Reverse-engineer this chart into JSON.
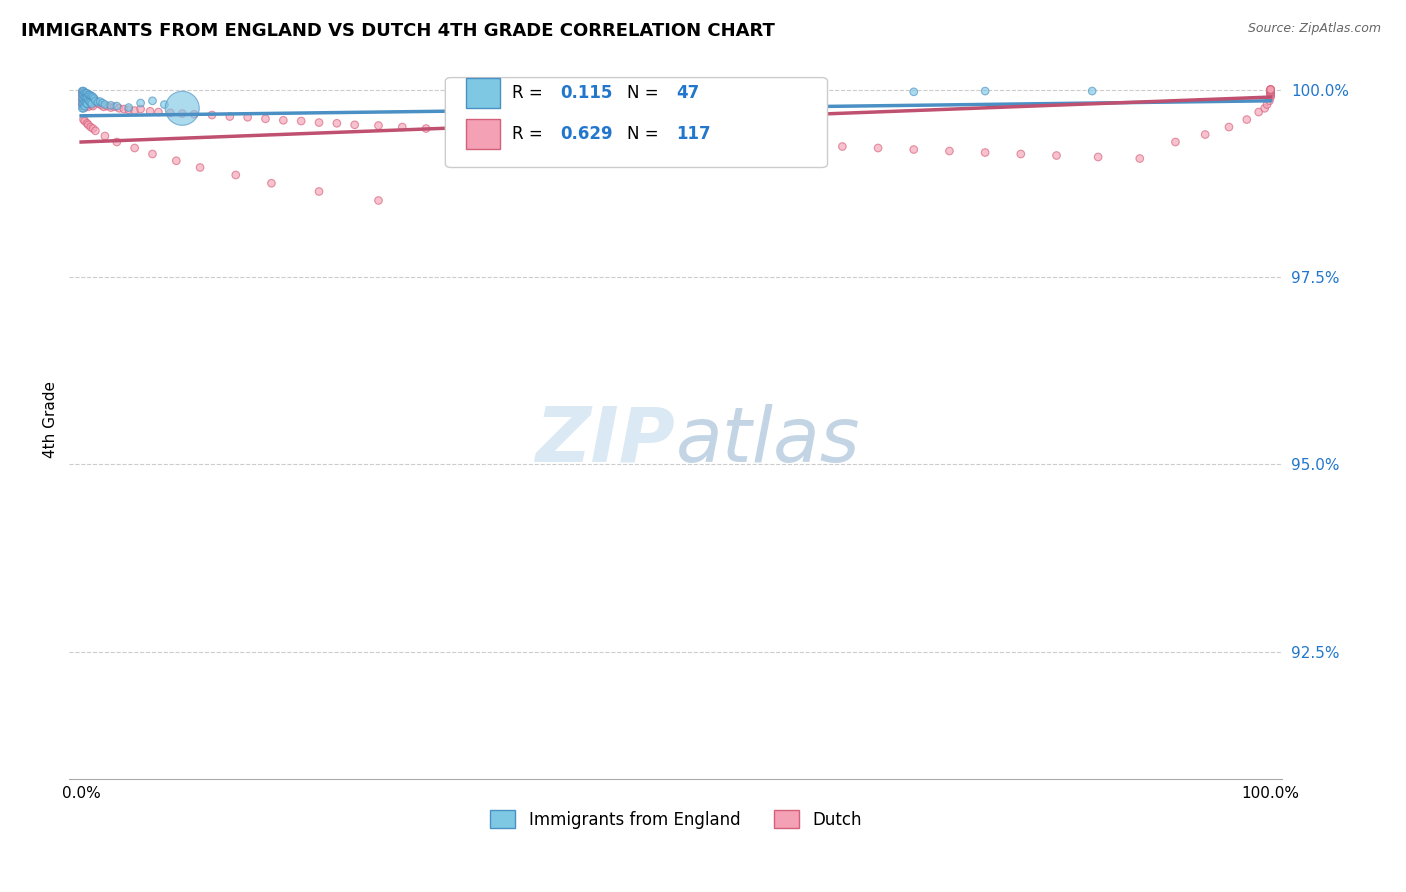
{
  "title": "IMMIGRANTS FROM ENGLAND VS DUTCH 4TH GRADE CORRELATION CHART",
  "source": "Source: ZipAtlas.com",
  "ylabel": "4th Grade",
  "legend_label1": "Immigrants from England",
  "legend_label2": "Dutch",
  "R1": 0.115,
  "N1": 47,
  "R2": 0.629,
  "N2": 117,
  "color_blue": "#7ec8e3",
  "color_pink": "#f4a0b5",
  "color_blue_dark": "#4a90c4",
  "color_pink_dark": "#d4607a",
  "color_line_blue": "#4a90c4",
  "color_line_pink": "#c05070",
  "xlim": [
    -0.01,
    1.01
  ],
  "ylim": [
    0.908,
    1.004
  ],
  "ytick_vals": [
    0.925,
    0.95,
    0.975,
    1.0
  ],
  "ytick_labels": [
    "92.5%",
    "95.0%",
    "97.5%",
    "100.0%"
  ],
  "blue_x": [
    0.001,
    0.001,
    0.001,
    0.001,
    0.001,
    0.002,
    0.002,
    0.002,
    0.002,
    0.002,
    0.003,
    0.003,
    0.003,
    0.003,
    0.004,
    0.004,
    0.004,
    0.005,
    0.005,
    0.005,
    0.006,
    0.006,
    0.007,
    0.007,
    0.008,
    0.008,
    0.009,
    0.009,
    0.01,
    0.011,
    0.012,
    0.014,
    0.016,
    0.018,
    0.02,
    0.025,
    0.03,
    0.04,
    0.05,
    0.06,
    0.07,
    0.085,
    0.56,
    0.62,
    0.7,
    0.76,
    0.85
  ],
  "blue_y": [
    0.9998,
    0.9993,
    0.9987,
    0.9981,
    0.9975,
    0.9998,
    0.9993,
    0.9987,
    0.9981,
    0.9975,
    0.9996,
    0.999,
    0.9984,
    0.9978,
    0.9995,
    0.9989,
    0.9982,
    0.9995,
    0.9989,
    0.9981,
    0.9993,
    0.9986,
    0.9993,
    0.9984,
    0.9992,
    0.9983,
    0.9991,
    0.9981,
    0.999,
    0.9988,
    0.9985,
    0.9983,
    0.9984,
    0.9982,
    0.998,
    0.9979,
    0.9978,
    0.9976,
    0.9982,
    0.9985,
    0.998,
    0.9975,
    0.9995,
    0.9996,
    0.9997,
    0.9998,
    0.9998
  ],
  "blue_sizes": [
    30,
    30,
    30,
    30,
    30,
    30,
    30,
    30,
    30,
    30,
    30,
    30,
    30,
    30,
    30,
    30,
    30,
    30,
    30,
    30,
    30,
    30,
    30,
    30,
    30,
    30,
    30,
    30,
    30,
    30,
    30,
    30,
    30,
    30,
    30,
    30,
    30,
    30,
    30,
    30,
    30,
    600,
    30,
    30,
    30,
    30,
    30
  ],
  "pink_x": [
    0.001,
    0.001,
    0.001,
    0.001,
    0.002,
    0.002,
    0.002,
    0.002,
    0.003,
    0.003,
    0.003,
    0.003,
    0.004,
    0.004,
    0.004,
    0.005,
    0.005,
    0.005,
    0.006,
    0.006,
    0.006,
    0.007,
    0.007,
    0.008,
    0.008,
    0.009,
    0.009,
    0.01,
    0.01,
    0.011,
    0.012,
    0.013,
    0.015,
    0.017,
    0.019,
    0.022,
    0.025,
    0.028,
    0.032,
    0.036,
    0.04,
    0.045,
    0.05,
    0.058,
    0.065,
    0.075,
    0.085,
    0.095,
    0.11,
    0.125,
    0.14,
    0.155,
    0.17,
    0.185,
    0.2,
    0.215,
    0.23,
    0.25,
    0.27,
    0.29,
    0.315,
    0.34,
    0.37,
    0.4,
    0.43,
    0.46,
    0.49,
    0.52,
    0.55,
    0.58,
    0.61,
    0.64,
    0.67,
    0.7,
    0.73,
    0.76,
    0.79,
    0.82,
    0.855,
    0.89,
    0.92,
    0.945,
    0.965,
    0.98,
    0.99,
    0.995,
    0.997,
    0.999,
    1.0,
    1.0,
    1.0,
    1.0,
    1.0,
    1.0,
    1.0,
    1.0,
    1.0,
    1.0,
    1.0,
    1.0,
    0.002,
    0.003,
    0.005,
    0.006,
    0.008,
    0.01,
    0.012,
    0.02,
    0.03,
    0.045,
    0.06,
    0.08,
    0.1,
    0.13,
    0.16,
    0.2,
    0.25
  ],
  "pink_y": [
    0.9997,
    0.9992,
    0.9986,
    0.998,
    0.9996,
    0.9991,
    0.9985,
    0.9978,
    0.9995,
    0.9989,
    0.9983,
    0.9976,
    0.9994,
    0.9988,
    0.998,
    0.9993,
    0.9987,
    0.9979,
    0.9992,
    0.9985,
    0.9977,
    0.9991,
    0.9983,
    0.999,
    0.9981,
    0.9989,
    0.9979,
    0.9988,
    0.9978,
    0.9987,
    0.9985,
    0.9983,
    0.9981,
    0.9979,
    0.9977,
    0.9978,
    0.9976,
    0.9977,
    0.9975,
    0.9974,
    0.9973,
    0.9972,
    0.9974,
    0.9971,
    0.997,
    0.9969,
    0.9968,
    0.9967,
    0.9966,
    0.9964,
    0.9963,
    0.9961,
    0.9959,
    0.9958,
    0.9956,
    0.9955,
    0.9953,
    0.9952,
    0.995,
    0.9948,
    0.9946,
    0.9944,
    0.9942,
    0.994,
    0.9938,
    0.9936,
    0.9934,
    0.9932,
    0.993,
    0.9928,
    0.9926,
    0.9924,
    0.9922,
    0.992,
    0.9918,
    0.9916,
    0.9914,
    0.9912,
    0.991,
    0.9908,
    0.993,
    0.994,
    0.995,
    0.996,
    0.997,
    0.9975,
    0.998,
    0.9985,
    0.999,
    0.9992,
    0.9994,
    0.9995,
    0.9996,
    0.9997,
    0.9998,
    0.9999,
    1.0,
    1.0,
    1.0,
    1.0,
    0.996,
    0.9958,
    0.9955,
    0.9953,
    0.995,
    0.9948,
    0.9945,
    0.9938,
    0.993,
    0.9922,
    0.9914,
    0.9905,
    0.9896,
    0.9886,
    0.9875,
    0.9864,
    0.9852
  ],
  "pink_sizes": [
    30,
    30,
    30,
    30,
    30,
    30,
    30,
    30,
    30,
    30,
    30,
    30,
    30,
    30,
    30,
    30,
    30,
    30,
    30,
    30,
    30,
    30,
    30,
    30,
    30,
    30,
    30,
    30,
    30,
    30,
    30,
    30,
    30,
    30,
    30,
    30,
    30,
    30,
    30,
    30,
    30,
    30,
    30,
    30,
    30,
    30,
    30,
    30,
    30,
    30,
    30,
    30,
    30,
    30,
    30,
    30,
    30,
    30,
    30,
    30,
    30,
    30,
    30,
    30,
    30,
    30,
    30,
    30,
    30,
    30,
    30,
    30,
    30,
    30,
    30,
    30,
    30,
    30,
    30,
    30,
    30,
    30,
    30,
    30,
    30,
    30,
    30,
    30,
    30,
    30,
    30,
    30,
    30,
    30,
    30,
    30,
    30,
    30,
    30,
    30,
    30,
    30,
    30,
    30,
    30,
    30,
    30,
    30,
    30,
    30,
    30,
    30,
    30,
    30,
    30,
    30,
    30
  ]
}
